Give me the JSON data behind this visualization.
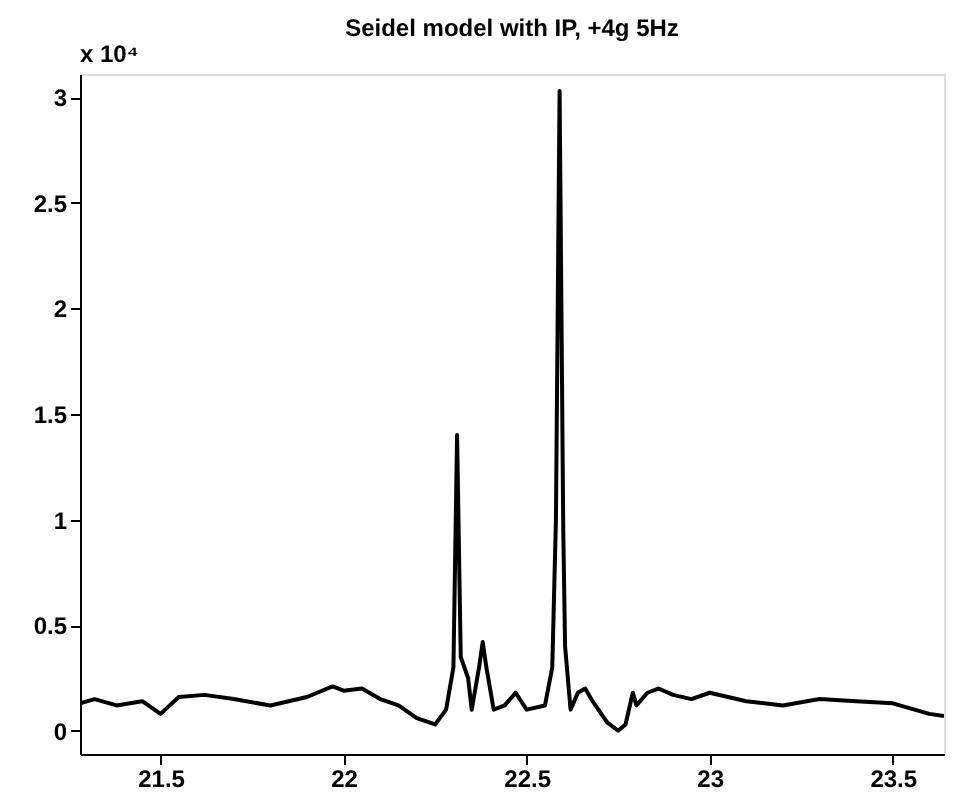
{
  "chart_data": {
    "type": "line",
    "title": "Seidel model with IP, +4g 5Hz",
    "annotations": [
      "x 10⁴"
    ],
    "x": [
      21.28,
      21.32,
      21.38,
      21.45,
      21.5,
      21.55,
      21.62,
      21.7,
      21.8,
      21.9,
      21.97,
      22.0,
      22.05,
      22.1,
      22.15,
      22.2,
      22.25,
      22.28,
      22.3,
      22.31,
      22.32,
      22.34,
      22.35,
      22.37,
      22.38,
      22.39,
      22.41,
      22.44,
      22.47,
      22.5,
      22.55,
      22.57,
      22.58,
      22.59,
      22.6,
      22.605,
      22.62,
      22.64,
      22.66,
      22.68,
      22.72,
      22.75,
      22.77,
      22.79,
      22.8,
      22.83,
      22.86,
      22.9,
      22.95,
      23.0,
      23.05,
      23.1,
      23.2,
      23.3,
      23.4,
      23.5,
      23.6,
      23.64
    ],
    "series": [
      {
        "color": "#000000",
        "values": [
          0.13,
          0.15,
          0.12,
          0.14,
          0.08,
          0.16,
          0.17,
          0.15,
          0.12,
          0.16,
          0.21,
          0.19,
          0.2,
          0.15,
          0.12,
          0.06,
          0.03,
          0.1,
          0.3,
          1.4,
          0.35,
          0.25,
          0.1,
          0.3,
          0.42,
          0.3,
          0.1,
          0.12,
          0.18,
          0.1,
          0.12,
          0.3,
          1.0,
          3.03,
          0.95,
          0.4,
          0.1,
          0.18,
          0.2,
          0.14,
          0.04,
          0.0,
          0.03,
          0.18,
          0.12,
          0.18,
          0.2,
          0.17,
          0.15,
          0.18,
          0.16,
          0.14,
          0.12,
          0.15,
          0.14,
          0.13,
          0.08,
          0.07
        ]
      }
    ],
    "xlim": [
      21.28,
      23.64
    ],
    "xticks": [
      21.5,
      22,
      22.5,
      23,
      23.5
    ],
    "ylim": [
      -0.11,
      3.11
    ],
    "yticks": [
      0,
      0.5,
      1,
      1.5,
      2,
      2.5,
      3
    ],
    "grid": false,
    "marker": "none",
    "line_style": "solid"
  }
}
